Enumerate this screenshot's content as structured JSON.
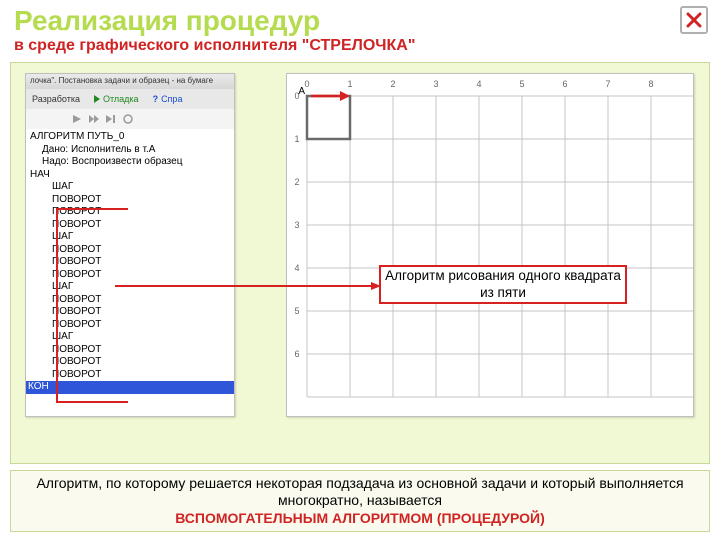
{
  "title": {
    "main": "Реализация  процедур",
    "sub": "в  среде  графического  исполнителя  \"СТРЕЛОЧКА\""
  },
  "code": {
    "topbar": "лочка\". Постановка задачи и образец - на бумаге",
    "tabs": {
      "dev": "Разработка",
      "debug": "Отладка",
      "help": "Спра"
    },
    "header": [
      "АЛГОРИТМ ПУТЬ_0",
      "Дано: Исполнитель в т.А",
      "Надо: Воспроизвести образец"
    ],
    "nach": "НАЧ",
    "steps": [
      "ШАГ",
      "ПОВОРОТ",
      "ПОВОРОТ",
      "ПОВОРОТ",
      "ШАГ",
      "ПОВОРОТ",
      "ПОВОРОТ",
      "ПОВОРОТ",
      "ШАГ",
      "ПОВОРОТ",
      "ПОВОРОТ",
      "ПОВОРОТ",
      "ШАГ",
      "ПОВОРОТ",
      "ПОВОРОТ",
      "ПОВОРОТ"
    ],
    "kon": "КОН"
  },
  "grid": {
    "cols": [
      0,
      1,
      2,
      3,
      4,
      5,
      6,
      7,
      8
    ],
    "rows": [
      0,
      1,
      2,
      3,
      4,
      5,
      6
    ],
    "cell": 43,
    "offsetX": 20,
    "offsetY": 22,
    "label_color": "#666666",
    "line_color": "#c4c4c4",
    "square_color": "#6a6a6a",
    "arrow_color": "#d82020",
    "point_label": "A"
  },
  "annotation": "Алгоритм рисования одного квадрата из пяти",
  "bottom": {
    "line1": "Алгоритм, по которому решается некоторая подзадача из основной задачи и который выполняется многократно, называется",
    "line2": "ВСПОМОГАТЕЛЬНЫМ АЛГОРИТМОМ (ПРОЦЕДУРОЙ)"
  },
  "colors": {
    "accent_green": "#b5db4f",
    "accent_red": "#d02323",
    "panel_bg": "#f0f8d4"
  }
}
